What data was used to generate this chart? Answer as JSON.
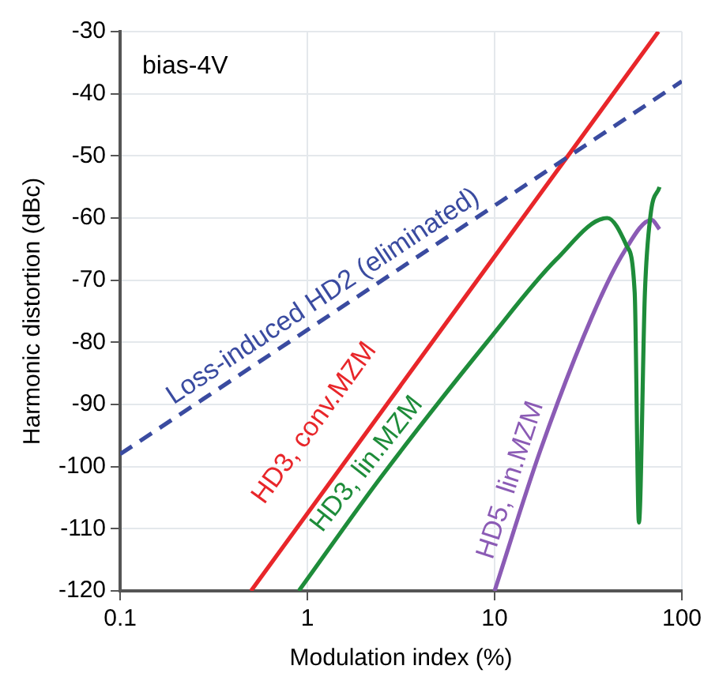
{
  "chart_data": {
    "type": "line",
    "xlabel": "Modulation index (%)",
    "ylabel": "Harmonic distortion (dBc)",
    "log": "x",
    "xlim": [
      0.1,
      100
    ],
    "xticks": [
      0.1,
      1,
      10,
      100
    ],
    "ylim": [
      -120,
      -30
    ],
    "yticks": [
      -120,
      -110,
      -100,
      -90,
      -80,
      -70,
      -60,
      -50,
      -40,
      -30
    ],
    "grid": true,
    "legend": false,
    "marker": "none",
    "annotations": [
      "bias-4V"
    ],
    "series": [
      {
        "name": "Loss-induced HD2 (eliminated)",
        "color": "#3a4ba0",
        "line_style": "dashed",
        "x": [
          0.1,
          100
        ],
        "values": [
          -98,
          -38
        ]
      },
      {
        "name": "HD3, conv.MZM",
        "color": "#e8262a",
        "line_style": "solid",
        "x": [
          0.5,
          75
        ],
        "values": [
          -120,
          -30
        ]
      },
      {
        "name": "HD3, lin.MZM",
        "color": "#1e8c3a",
        "line_style": "solid",
        "x": [
          0.9,
          2.5,
          9.2,
          21.3,
          40,
          50.8,
          56,
          59,
          63.5,
          68,
          76
        ],
        "values": [
          -120,
          -101.5,
          -79.8,
          -66.7,
          -60,
          -64.5,
          -72,
          -109,
          -72,
          -59.6,
          -55
        ]
      },
      {
        "name": "HD5, lin.MZM",
        "color": "#8b5bb5",
        "line_style": "solid",
        "x": [
          10,
          17.5,
          33,
          49,
          69,
          76
        ],
        "values": [
          -120,
          -97.5,
          -76,
          -65.5,
          -60.3,
          -61.8
        ]
      }
    ]
  }
}
